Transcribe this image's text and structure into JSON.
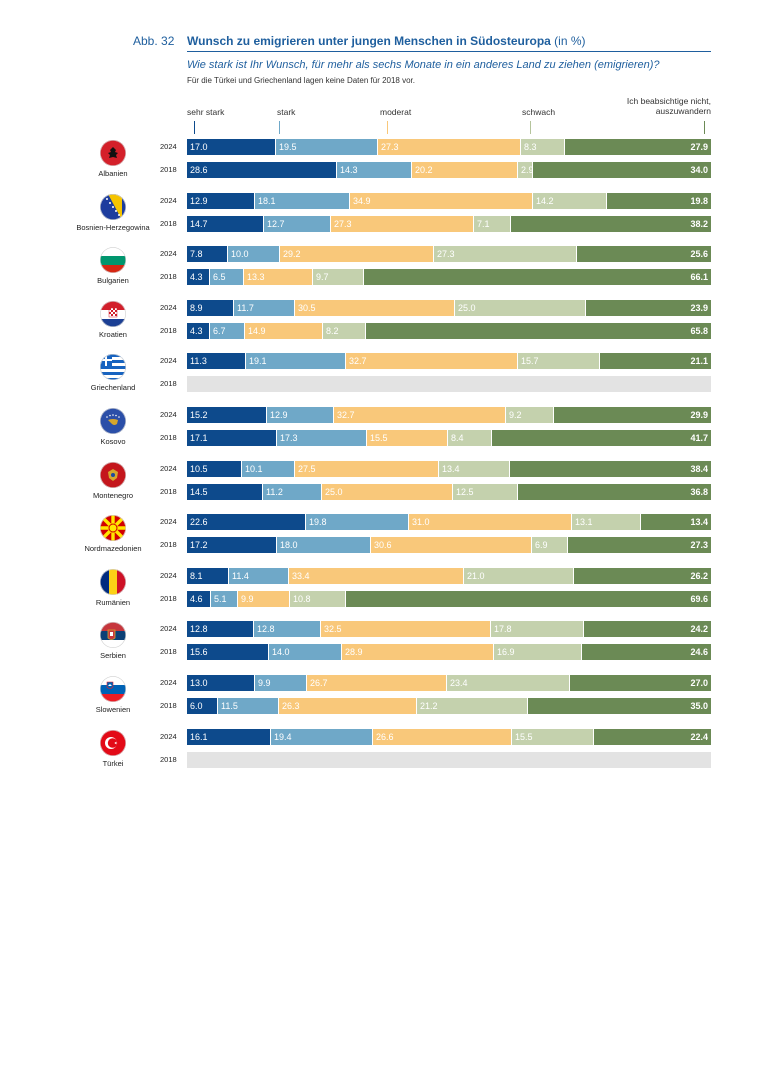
{
  "header": {
    "figure_label": "Abb. 32",
    "title": "Wunsch zu emigrieren unter jungen Menschen in Südosteuropa",
    "title_unit": "(in %)",
    "question": "Wie stark ist Ihr Wunsch, für mehr als sechs Monate in ein anderes Land zu ziehen (emigrieren)?",
    "note": "Für die Türkei und Griechenland lagen keine Daten für 2018 vor."
  },
  "colors": {
    "sehr_stark": "#0d4a8c",
    "stark": "#6fa8c8",
    "moderat": "#f9c87a",
    "schwach": "#c4d1ad",
    "nicht": "#6b8a55",
    "nodata": "#e3e3e3"
  },
  "chart_data": {
    "type": "bar",
    "orientation": "horizontal",
    "stacked": true,
    "legend_placement": "top",
    "categories_legend": [
      {
        "key": "sehr_stark",
        "label": "sehr stark",
        "tick_color": "#0d4a8c"
      },
      {
        "key": "stark",
        "label": "stark",
        "tick_color": "#6fa8c8"
      },
      {
        "key": "moderat",
        "label": "moderat",
        "tick_color": "#f9c87a"
      },
      {
        "key": "schwach",
        "label": "schwach",
        "tick_color": "#b5c49c"
      },
      {
        "key": "nicht",
        "label_line1": "Ich beabsichtige nicht,",
        "label_line2": "auszuwandern",
        "tick_color": "#6b8a55"
      }
    ],
    "countries": [
      {
        "name": "Albanien",
        "flag": "albania-flag-icon",
        "rows": [
          {
            "year": "2024",
            "values": [
              17.0,
              19.5,
              27.3,
              8.3,
              27.9
            ]
          },
          {
            "year": "2018",
            "values": [
              28.6,
              14.3,
              20.2,
              2.9,
              34.0
            ]
          }
        ]
      },
      {
        "name": "Bosnien-Herzegowina",
        "flag": "bosnia-flag-icon",
        "rows": [
          {
            "year": "2024",
            "values": [
              12.9,
              18.1,
              34.9,
              14.2,
              19.8
            ]
          },
          {
            "year": "2018",
            "values": [
              14.7,
              12.7,
              27.3,
              7.1,
              38.2
            ]
          }
        ]
      },
      {
        "name": "Bulgarien",
        "flag": "bulgaria-flag-icon",
        "rows": [
          {
            "year": "2024",
            "values": [
              7.8,
              10.0,
              29.2,
              27.3,
              25.6
            ]
          },
          {
            "year": "2018",
            "values": [
              4.3,
              6.5,
              13.3,
              9.7,
              66.1
            ]
          }
        ]
      },
      {
        "name": "Kroatien",
        "flag": "croatia-flag-icon",
        "rows": [
          {
            "year": "2024",
            "values": [
              8.9,
              11.7,
              30.5,
              25.0,
              23.9
            ]
          },
          {
            "year": "2018",
            "values": [
              4.3,
              6.7,
              14.9,
              8.2,
              65.8
            ]
          }
        ]
      },
      {
        "name": "Griechenland",
        "flag": "greece-flag-icon",
        "rows": [
          {
            "year": "2024",
            "values": [
              11.3,
              19.1,
              32.7,
              15.7,
              21.1
            ]
          },
          {
            "year": "2018",
            "values": null
          }
        ]
      },
      {
        "name": "Kosovo",
        "flag": "kosovo-flag-icon",
        "rows": [
          {
            "year": "2024",
            "values": [
              15.2,
              12.9,
              32.7,
              9.2,
              29.9
            ]
          },
          {
            "year": "2018",
            "values": [
              17.1,
              17.3,
              15.5,
              8.4,
              41.7
            ]
          }
        ]
      },
      {
        "name": "Montenegro",
        "flag": "montenegro-flag-icon",
        "rows": [
          {
            "year": "2024",
            "values": [
              10.5,
              10.1,
              27.5,
              13.4,
              38.4
            ]
          },
          {
            "year": "2018",
            "values": [
              14.5,
              11.2,
              25.0,
              12.5,
              36.8
            ]
          }
        ]
      },
      {
        "name": "Nordmazedonien",
        "flag": "north-macedonia-flag-icon",
        "rows": [
          {
            "year": "2024",
            "values": [
              22.6,
              19.8,
              31.0,
              13.1,
              13.4
            ]
          },
          {
            "year": "2018",
            "values": [
              17.2,
              18.0,
              30.6,
              6.9,
              27.3
            ]
          }
        ]
      },
      {
        "name": "Rumänien",
        "flag": "romania-flag-icon",
        "rows": [
          {
            "year": "2024",
            "values": [
              8.1,
              11.4,
              33.4,
              21.0,
              26.2
            ]
          },
          {
            "year": "2018",
            "values": [
              4.6,
              5.1,
              9.9,
              10.8,
              69.6
            ]
          }
        ]
      },
      {
        "name": "Serbien",
        "flag": "serbia-flag-icon",
        "rows": [
          {
            "year": "2024",
            "values": [
              12.8,
              12.8,
              32.5,
              17.8,
              24.2
            ]
          },
          {
            "year": "2018",
            "values": [
              15.6,
              14.0,
              28.9,
              16.9,
              24.6
            ]
          }
        ]
      },
      {
        "name": "Slowenien",
        "flag": "slovenia-flag-icon",
        "rows": [
          {
            "year": "2024",
            "values": [
              13.0,
              9.9,
              26.7,
              23.4,
              27.0
            ]
          },
          {
            "year": "2018",
            "values": [
              6.0,
              11.5,
              26.3,
              21.2,
              35.0
            ]
          }
        ]
      },
      {
        "name": "Türkei",
        "flag": "turkey-flag-icon",
        "rows": [
          {
            "year": "2024",
            "values": [
              16.1,
              19.4,
              26.6,
              15.5,
              22.4
            ]
          },
          {
            "year": "2018",
            "values": null
          }
        ]
      }
    ]
  }
}
